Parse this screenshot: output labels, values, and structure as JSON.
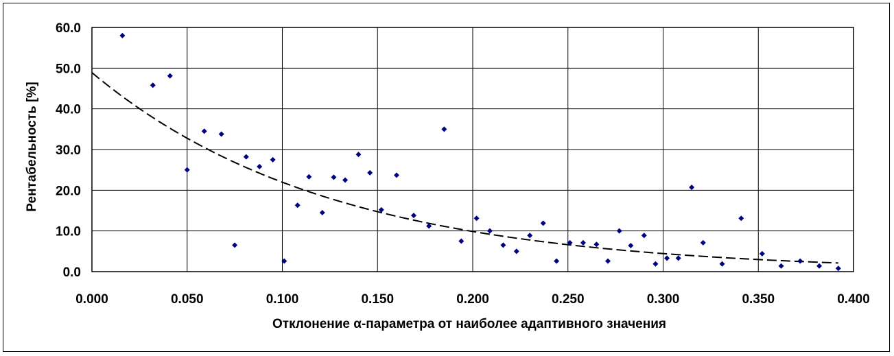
{
  "chart_data": {
    "type": "scatter",
    "xlabel": "Отклонение α-параметра от наиболее адаптивного значения",
    "ylabel": "Рентабельность [%]",
    "xlim": [
      0,
      0.4
    ],
    "ylim": [
      0,
      60
    ],
    "x_ticks": [
      "0.000",
      "0.050",
      "0.100",
      "0.150",
      "0.200",
      "0.250",
      "0.300",
      "0.350",
      "0.400"
    ],
    "y_ticks": [
      "0.0",
      "10.0",
      "20.0",
      "30.0",
      "40.0",
      "50.0",
      "60.0"
    ],
    "grid": true,
    "legend": "none",
    "marker_color": "#000080",
    "series": [
      {
        "points": [
          [
            0.016,
            58.0
          ],
          [
            0.032,
            45.8
          ],
          [
            0.041,
            48.1
          ],
          [
            0.05,
            25.0
          ],
          [
            0.059,
            34.5
          ],
          [
            0.068,
            33.8
          ],
          [
            0.075,
            6.5
          ],
          [
            0.081,
            28.2
          ],
          [
            0.088,
            25.8
          ],
          [
            0.095,
            27.5
          ],
          [
            0.101,
            2.6
          ],
          [
            0.108,
            16.3
          ],
          [
            0.114,
            23.3
          ],
          [
            0.121,
            14.5
          ],
          [
            0.127,
            23.2
          ],
          [
            0.133,
            22.5
          ],
          [
            0.14,
            28.8
          ],
          [
            0.146,
            24.3
          ],
          [
            0.152,
            15.2
          ],
          [
            0.16,
            23.7
          ],
          [
            0.169,
            13.8
          ],
          [
            0.177,
            11.2
          ],
          [
            0.185,
            35.0
          ],
          [
            0.194,
            7.5
          ],
          [
            0.202,
            13.1
          ],
          [
            0.209,
            10.0
          ],
          [
            0.216,
            6.5
          ],
          [
            0.223,
            5.0
          ],
          [
            0.23,
            8.9
          ],
          [
            0.237,
            11.9
          ],
          [
            0.244,
            2.6
          ],
          [
            0.251,
            7.1
          ],
          [
            0.258,
            7.1
          ],
          [
            0.265,
            6.7
          ],
          [
            0.271,
            2.6
          ],
          [
            0.277,
            10.0
          ],
          [
            0.283,
            6.4
          ],
          [
            0.29,
            8.9
          ],
          [
            0.296,
            1.9
          ],
          [
            0.302,
            3.3
          ],
          [
            0.308,
            3.3
          ],
          [
            0.315,
            20.7
          ],
          [
            0.321,
            7.1
          ],
          [
            0.331,
            1.9
          ],
          [
            0.341,
            13.1
          ],
          [
            0.352,
            4.4
          ],
          [
            0.362,
            1.4
          ],
          [
            0.372,
            2.6
          ],
          [
            0.382,
            1.4
          ],
          [
            0.392,
            0.8
          ]
        ]
      }
    ],
    "trendline": {
      "style": "dashed",
      "color": "#000000",
      "type": "exponential",
      "a": 48.9,
      "b": -8.0,
      "x_range": [
        0.0,
        0.392
      ]
    }
  }
}
